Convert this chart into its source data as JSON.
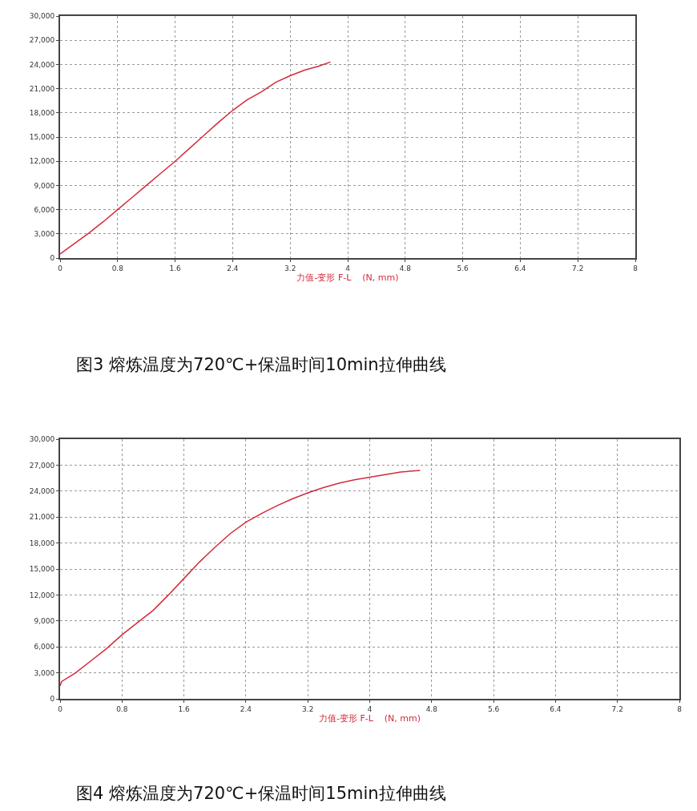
{
  "chart_data": [
    {
      "type": "line",
      "title": "图3 熔炼温度为720℃+保温时间10min拉伸曲线",
      "xlabel": "力值-变形 F-L    (N, mm)",
      "x": [
        0,
        0.2,
        0.4,
        0.6,
        0.8,
        1.0,
        1.2,
        1.4,
        1.6,
        1.8,
        2.0,
        2.2,
        2.4,
        2.6,
        2.8,
        3.0,
        3.2,
        3.4,
        3.6,
        3.76
      ],
      "series": [
        {
          "color": "#d42a3c",
          "values": [
            500,
            1800,
            3100,
            4500,
            6000,
            7500,
            9000,
            10500,
            12000,
            13600,
            15200,
            16800,
            18300,
            19600,
            20600,
            21800,
            22600,
            23300,
            23800,
            24300
          ]
        }
      ],
      "xlim": [
        0,
        8
      ],
      "xticks": [
        0,
        0.8,
        1.6,
        2.4,
        3.2,
        4,
        4.8,
        5.6,
        6.4,
        7.2,
        8
      ],
      "ylim": [
        0,
        30000
      ],
      "yticks": [
        {
          "value": 0,
          "label": "0"
        },
        {
          "value": 3000,
          "label": "3,000"
        },
        {
          "value": 6000,
          "label": "6,000"
        },
        {
          "value": 9000,
          "label": "9,000"
        },
        {
          "value": 12000,
          "label": "12,000"
        },
        {
          "value": 15000,
          "label": "15,000"
        },
        {
          "value": 18000,
          "label": "18,000"
        },
        {
          "value": 21000,
          "label": "21,000"
        },
        {
          "value": 24000,
          "label": "24,000"
        },
        {
          "value": 27000,
          "label": "27,000"
        },
        {
          "value": 30000,
          "label": "30,000"
        }
      ],
      "grid": true,
      "marker": "none",
      "line_style": "solid"
    },
    {
      "type": "line",
      "title": "图4 熔炼温度为720℃+保温时间15min拉伸曲线",
      "xlabel": "力值-变形 F-L    (N, mm)",
      "x": [
        0,
        0.02,
        0.2,
        0.4,
        0.6,
        0.8,
        1.0,
        1.2,
        1.4,
        1.6,
        1.8,
        2.0,
        2.2,
        2.4,
        2.6,
        2.8,
        3.0,
        3.2,
        3.4,
        3.6,
        3.8,
        4.0,
        4.2,
        4.4,
        4.65
      ],
      "series": [
        {
          "color": "#d42a3c",
          "values": [
            1500,
            2000,
            3000,
            4400,
            5800,
            7400,
            8800,
            10200,
            12000,
            13900,
            15800,
            17500,
            19100,
            20400,
            21400,
            22300,
            23100,
            23800,
            24400,
            24900,
            25300,
            25600,
            25900,
            26200,
            26400
          ]
        }
      ],
      "xlim": [
        0,
        8
      ],
      "xticks": [
        0,
        0.8,
        1.6,
        2.4,
        3.2,
        4,
        4.8,
        5.6,
        6.4,
        7.2,
        8
      ],
      "ylim": [
        0,
        30000
      ],
      "yticks": [
        {
          "value": 0,
          "label": "0"
        },
        {
          "value": 3000,
          "label": "3,000"
        },
        {
          "value": 6000,
          "label": "6,000"
        },
        {
          "value": 9000,
          "label": "9,000"
        },
        {
          "value": 12000,
          "label": "12,000"
        },
        {
          "value": 15000,
          "label": "15,000"
        },
        {
          "value": 18000,
          "label": "18,000"
        },
        {
          "value": 21000,
          "label": "21,000"
        },
        {
          "value": 24000,
          "label": "24,000"
        },
        {
          "value": 27000,
          "label": "27,000"
        },
        {
          "value": 30000,
          "label": "30,000"
        }
      ],
      "grid": true,
      "marker": "none",
      "line_style": "solid"
    }
  ]
}
